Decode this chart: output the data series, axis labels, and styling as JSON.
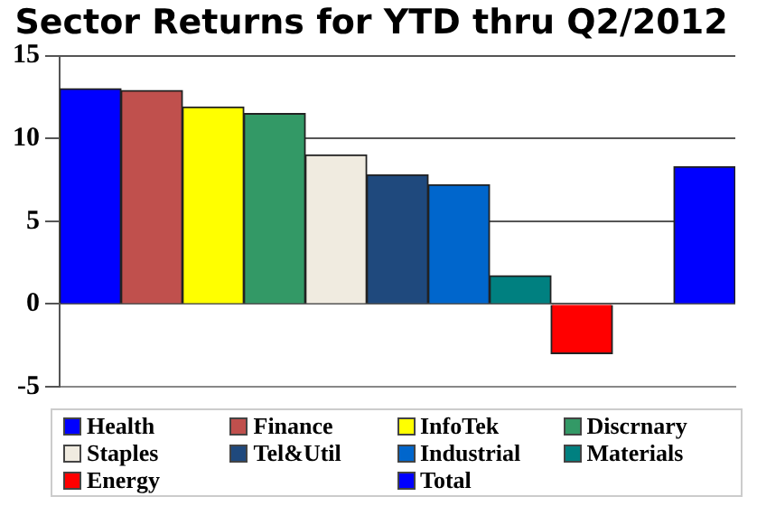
{
  "chart_data": {
    "type": "bar",
    "title": "Sector Returns for YTD thru Q2/2012",
    "categories": [
      null,
      null,
      null,
      null,
      null,
      null,
      null,
      null,
      null,
      null,
      null
    ],
    "series": [
      {
        "name": "Health",
        "color": "#0000ff",
        "values": [
          13.0,
          null,
          null,
          null,
          null,
          null,
          null,
          null,
          null,
          null,
          null
        ]
      },
      {
        "name": "Finance",
        "color": "#c0504d",
        "values": [
          null,
          12.9,
          null,
          null,
          null,
          null,
          null,
          null,
          null,
          null,
          null
        ]
      },
      {
        "name": "InfoTek",
        "color": "#ffff00",
        "values": [
          null,
          null,
          11.9,
          null,
          null,
          null,
          null,
          null,
          null,
          null,
          null
        ]
      },
      {
        "name": "Discrnary",
        "color": "#339966",
        "values": [
          null,
          null,
          null,
          11.5,
          null,
          null,
          null,
          null,
          null,
          null,
          null
        ]
      },
      {
        "name": "Staples",
        "color": "#f0ebe0",
        "values": [
          null,
          null,
          null,
          null,
          9.0,
          null,
          null,
          null,
          null,
          null,
          null
        ]
      },
      {
        "name": "Tel&Util",
        "color": "#1f497d",
        "values": [
          null,
          null,
          null,
          null,
          null,
          7.8,
          null,
          null,
          null,
          null,
          null
        ]
      },
      {
        "name": "Industrial",
        "color": "#0066cc",
        "values": [
          null,
          null,
          null,
          null,
          null,
          null,
          7.2,
          null,
          null,
          null,
          null
        ]
      },
      {
        "name": "Materials",
        "color": "#008080",
        "values": [
          null,
          null,
          null,
          null,
          null,
          null,
          null,
          1.7,
          null,
          null,
          null
        ]
      },
      {
        "name": "Energy",
        "color": "#ff0000",
        "values": [
          null,
          null,
          null,
          null,
          null,
          null,
          null,
          null,
          -3.0,
          null,
          null
        ]
      },
      {
        "name": "Total",
        "color": "#0000ff",
        "values": [
          null,
          null,
          null,
          null,
          null,
          null,
          null,
          null,
          null,
          null,
          8.3
        ]
      }
    ],
    "ylim": [
      -5,
      15
    ],
    "yticks": [
      -5,
      0,
      5,
      10,
      15
    ],
    "grid": "y",
    "legend": "bottom"
  }
}
